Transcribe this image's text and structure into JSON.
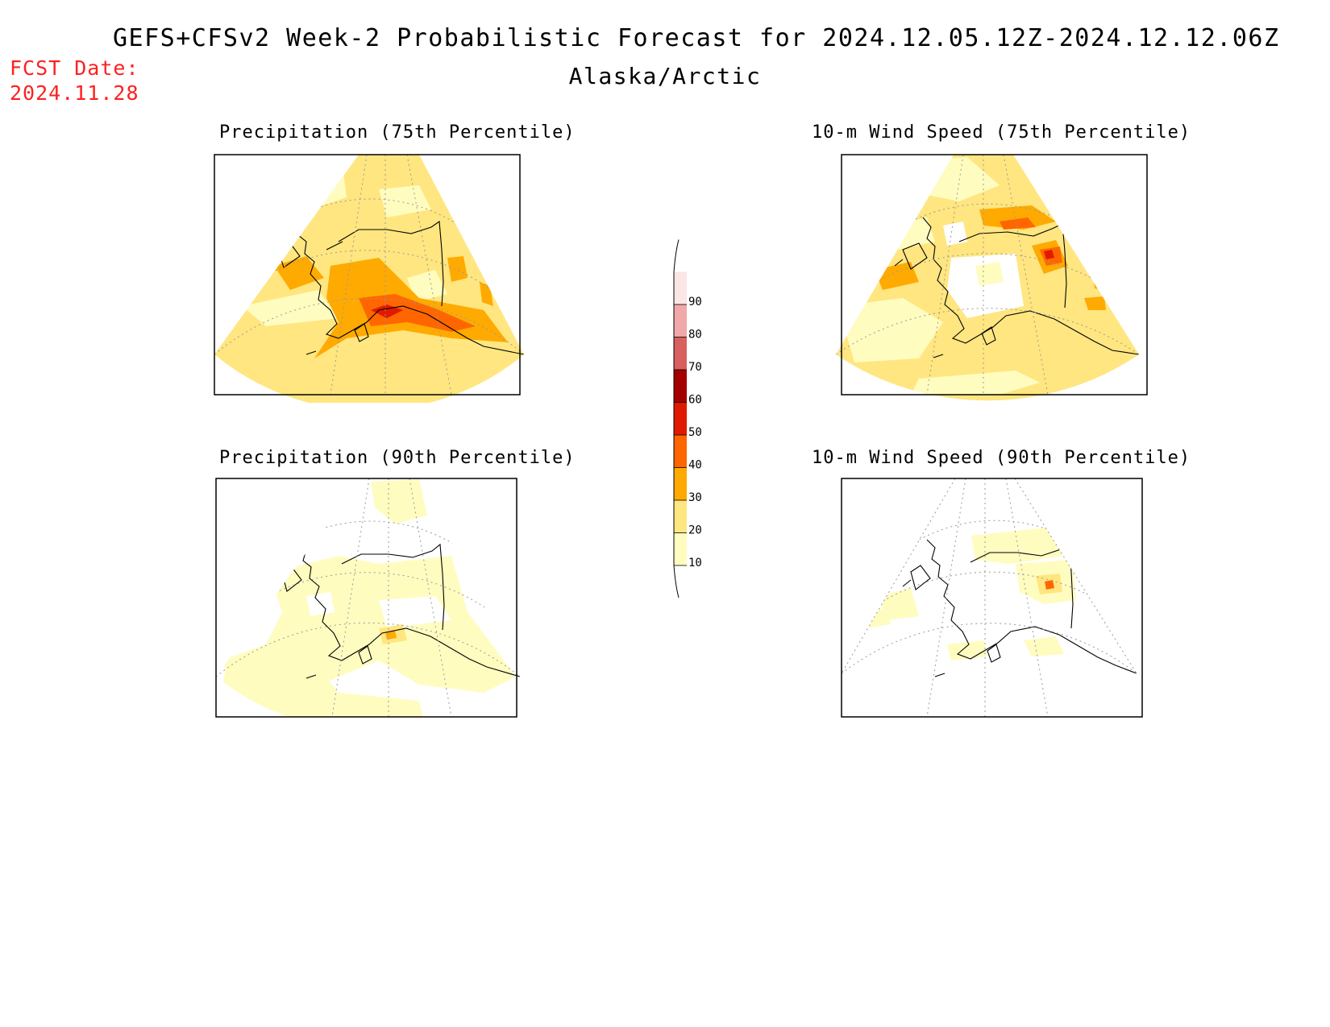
{
  "header": {
    "title": "GEFS+CFSv2 Week-2 Probabilistic Forecast for 2024.12.05.12Z-2024.12.12.06Z",
    "region": "Alaska/Arctic",
    "fcst_label": "FCST Date:",
    "fcst_date": "2024.11.28"
  },
  "panels": [
    {
      "title": "Precipitation (75th Percentile)",
      "variable": "precipitation",
      "percentile": 75
    },
    {
      "title": "10-m Wind Speed (75th Percentile)",
      "variable": "wind_speed",
      "percentile": 75
    },
    {
      "title": "Precipitation (90th Percentile)",
      "variable": "precipitation",
      "percentile": 90
    },
    {
      "title": "10-m Wind Speed (90th Percentile)",
      "variable": "wind_speed",
      "percentile": 90
    }
  ],
  "colorbar": {
    "levels": [
      "10",
      "20",
      "30",
      "40",
      "50",
      "60",
      "70",
      "80",
      "90"
    ],
    "colors": [
      "#fffcc0",
      "#ffe680",
      "#ffaa00",
      "#ff6600",
      "#e01a00",
      "#a50000",
      "#d96060",
      "#f0a8a8",
      "#fbe6e6"
    ]
  }
}
